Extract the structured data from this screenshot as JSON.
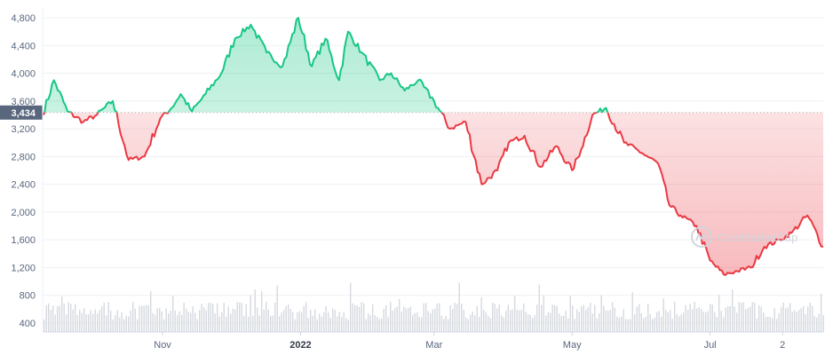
{
  "chart_data": {
    "type": "area",
    "title": "",
    "xlabel": "",
    "ylabel": "",
    "ylim": [
      400,
      5000
    ],
    "y_ticks": [
      "4,800",
      "4,400",
      "4,000",
      "3,600",
      "3,200",
      "2,800",
      "2,400",
      "2,000",
      "1,600",
      "1,200",
      "800",
      "400"
    ],
    "y_tick_values": [
      4800,
      4400,
      4000,
      3600,
      3200,
      2800,
      2400,
      2000,
      1600,
      1200,
      800,
      400
    ],
    "x_ticks": [
      {
        "label": "Nov",
        "date": "2021-11-01",
        "bold": false
      },
      {
        "label": "2022",
        "date": "2022-01-01",
        "bold": true
      },
      {
        "label": "Mar",
        "date": "2022-03-01",
        "bold": false
      },
      {
        "label": "May",
        "date": "2022-05-01",
        "bold": false
      },
      {
        "label": "Jul",
        "date": "2022-07-01",
        "bold": false
      },
      {
        "label": "2",
        "date": "2022-08-02",
        "bold": false
      }
    ],
    "x_range": [
      "2021-09-09",
      "2022-08-20"
    ],
    "reference_value": 3434,
    "reference_label": "3,434",
    "grid": true,
    "colors": {
      "above": "#16c784",
      "below": "#ea3943",
      "reference": "#58667e",
      "volume": "#d5d9df"
    },
    "series": [
      {
        "values_x": [
          "2021-09-09",
          "2021-09-14",
          "2021-09-20",
          "2021-09-27",
          "2021-10-03",
          "2021-10-10",
          "2021-10-17",
          "2021-10-24",
          "2021-10-31",
          "2021-11-05",
          "2021-11-09",
          "2021-11-14",
          "2021-11-20",
          "2021-11-27",
          "2021-12-03",
          "2021-12-10",
          "2021-12-17",
          "2021-12-24",
          "2021-12-31",
          "2022-01-06",
          "2022-01-12",
          "2022-01-18",
          "2022-01-22",
          "2022-01-28",
          "2022-02-05",
          "2022-02-10",
          "2022-02-16",
          "2022-02-22",
          "2022-03-01",
          "2022-03-08",
          "2022-03-15",
          "2022-03-22",
          "2022-03-29",
          "2022-04-03",
          "2022-04-10",
          "2022-04-17",
          "2022-04-24",
          "2022-05-01",
          "2022-05-05",
          "2022-05-10",
          "2022-05-16",
          "2022-05-24",
          "2022-06-01",
          "2022-06-08",
          "2022-06-13",
          "2022-06-18",
          "2022-06-25",
          "2022-07-01",
          "2022-07-07",
          "2022-07-13",
          "2022-07-19",
          "2022-07-25",
          "2022-08-01",
          "2022-08-06",
          "2022-08-13",
          "2022-08-20"
        ],
        "values_y": [
          3400,
          3900,
          3450,
          3300,
          3400,
          3600,
          2750,
          2800,
          3350,
          3500,
          3700,
          3450,
          3700,
          4000,
          4500,
          4700,
          4300,
          4100,
          4800,
          4100,
          4500,
          3900,
          4600,
          4300,
          3900,
          4000,
          3750,
          3900,
          3600,
          3200,
          3300,
          2400,
          2600,
          3000,
          3100,
          2650,
          2950,
          2600,
          2900,
          3400,
          3500,
          3000,
          2850,
          2700,
          2100,
          1950,
          1800,
          1300,
          1100,
          1150,
          1200,
          1500,
          1600,
          1700,
          1950,
          1500
        ]
      }
    ]
  },
  "watermark": {
    "text": "CoinMarketCap"
  }
}
